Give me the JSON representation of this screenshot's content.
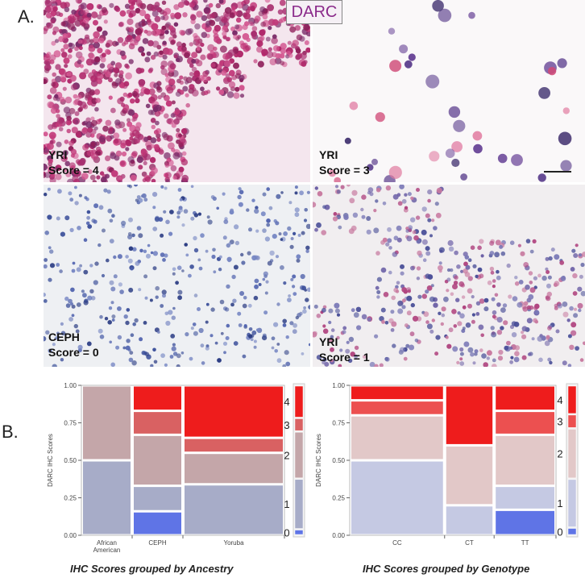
{
  "panel_a_letter": "A.",
  "panel_b_letter": "B.",
  "stain_title": "DARC",
  "micrographs": [
    {
      "group": "YRI",
      "score": "Score = 4",
      "stain": "heavy"
    },
    {
      "group": "YRI",
      "score": "Score = 3",
      "stain": "sparse"
    },
    {
      "group": "CEPH",
      "score": "Score = 0",
      "stain": "blue"
    },
    {
      "group": "YRI",
      "score": "Score = 1",
      "stain": "mixed"
    }
  ],
  "colors": {
    "score0": "#5f74e6",
    "score1": "#a7acc8",
    "score2": "#c4a6a9",
    "score3": "#d96162",
    "score4": "#ee1c1c",
    "score1_light": "#c5c9e3",
    "score2_light": "#e2c8c8",
    "score3_light": "#ec5050"
  },
  "chart_data": [
    {
      "type": "mosaic",
      "caption": "IHC Scores grouped by Ancestry",
      "ylabel": "DARC IHC Scores",
      "yticks": [
        "0.00",
        "0.25",
        "0.50",
        "0.75",
        "1.00"
      ],
      "ylim": [
        0,
        1
      ],
      "legend_labels": [
        "0",
        "1",
        "2",
        "3",
        "4"
      ],
      "categories": [
        {
          "name": "African American",
          "label_lines": [
            "African",
            "American"
          ],
          "width": 0.25,
          "segments": [
            {
              "score": 1,
              "value": 0.5
            },
            {
              "score": 2,
              "value": 0.5
            }
          ]
        },
        {
          "name": "CEPH",
          "label_lines": [
            "CEPH"
          ],
          "width": 0.25,
          "segments": [
            {
              "score": 0,
              "value": 0.16
            },
            {
              "score": 1,
              "value": 0.17
            },
            {
              "score": 2,
              "value": 0.34
            },
            {
              "score": 3,
              "value": 0.16
            },
            {
              "score": 4,
              "value": 0.17
            }
          ]
        },
        {
          "name": "Yoruba",
          "label_lines": [
            "Yoruba"
          ],
          "width": 0.5,
          "segments": [
            {
              "score": 1,
              "value": 0.34
            },
            {
              "score": 2,
              "value": 0.21
            },
            {
              "score": 3,
              "value": 0.1
            },
            {
              "score": 4,
              "value": 0.35
            }
          ]
        }
      ]
    },
    {
      "type": "mosaic",
      "caption": "IHC Scores grouped by Genotype",
      "ylabel": "DARC IHC Scores",
      "yticks": [
        "0.00",
        "0.25",
        "0.50",
        "0.75",
        "1.00"
      ],
      "ylim": [
        0,
        1
      ],
      "legend_labels": [
        "0",
        "1",
        "2",
        "3",
        "4"
      ],
      "categories": [
        {
          "name": "CC",
          "label_lines": [
            "CC"
          ],
          "width": 0.46,
          "segments": [
            {
              "score": 1,
              "value": 0.5
            },
            {
              "score": 2,
              "value": 0.3
            },
            {
              "score": 3,
              "value": 0.1
            },
            {
              "score": 4,
              "value": 0.1
            }
          ]
        },
        {
          "name": "CT",
          "label_lines": [
            "CT"
          ],
          "width": 0.24,
          "segments": [
            {
              "score": 1,
              "value": 0.2
            },
            {
              "score": 2,
              "value": 0.4
            },
            {
              "score": 4,
              "value": 0.4
            }
          ]
        },
        {
          "name": "TT",
          "label_lines": [
            "TT"
          ],
          "width": 0.3,
          "segments": [
            {
              "score": 0,
              "value": 0.17
            },
            {
              "score": 1,
              "value": 0.16
            },
            {
              "score": 2,
              "value": 0.34
            },
            {
              "score": 3,
              "value": 0.16
            },
            {
              "score": 4,
              "value": 0.17
            }
          ]
        }
      ]
    }
  ]
}
